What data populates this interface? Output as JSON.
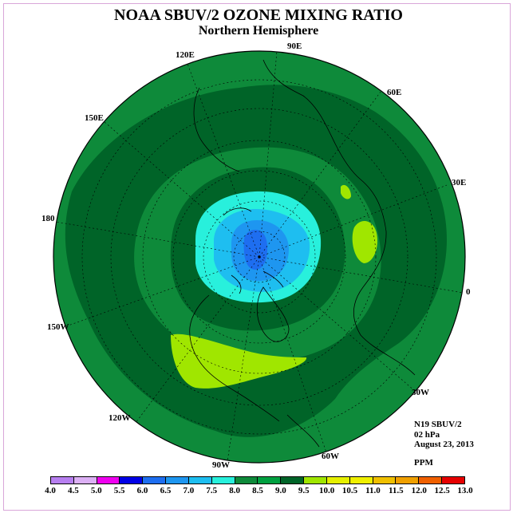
{
  "title": "NOAA SBUV/2 OZONE MIXING RATIO",
  "subtitle": "Northern Hemisphere",
  "longitude_labels": {
    "lon_90e": "90E",
    "lon_60e": "60E",
    "lon_30e": "30E",
    "lon_0": "0",
    "lon_30w": "30W",
    "lon_60w": "60W",
    "lon_90w": "90W",
    "lon_120w": "120W",
    "lon_150w": "150W",
    "lon_180": "180",
    "lon_150e": "150E",
    "lon_120e": "120E"
  },
  "info": {
    "instrument": "N19 SBUV/2",
    "level": "02 hPa",
    "date": "August 23, 2013",
    "units": "PPM"
  },
  "colorbar": {
    "labels": [
      "4.0",
      "4.5",
      "5.0",
      "5.5",
      "6.0",
      "6.5",
      "7.0",
      "7.5",
      "8.0",
      "8.5",
      "9.0",
      "9.5",
      "10.0",
      "10.5",
      "11.0",
      "11.5",
      "12.0",
      "12.5",
      "13.0"
    ],
    "colors": [
      "#b77ff0",
      "#dcb0f5",
      "#f000f0",
      "#0000e6",
      "#1e6ef0",
      "#1e96f0",
      "#1ebef0",
      "#28f0dc",
      "#0e8a3a",
      "#00a040",
      "#006428",
      "#a0e600",
      "#e6f000",
      "#f0f000",
      "#f0c000",
      "#f0a000",
      "#f06000",
      "#e60000",
      "#8b5a3c"
    ]
  },
  "field_colors": {
    "background": "#0e8a3a",
    "dark_green": "#006428",
    "cyan": "#28f0dc",
    "light_blue": "#1ebef0",
    "blue": "#1e96f0",
    "deep_blue": "#1e6ef0",
    "yellow_green": "#a0e600"
  }
}
